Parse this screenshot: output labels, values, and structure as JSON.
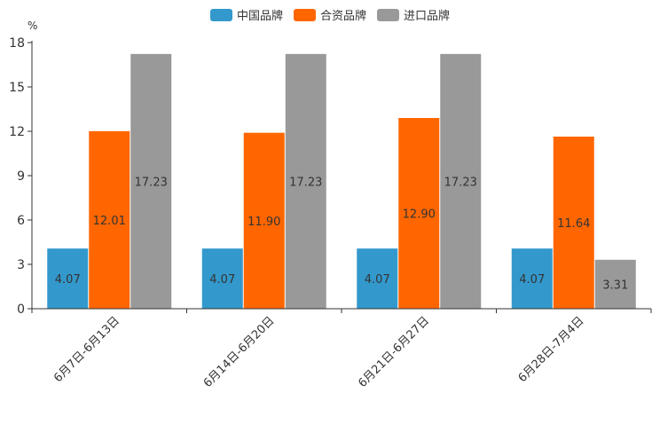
{
  "chart_data": {
    "type": "bar",
    "title": "",
    "unit_label": "%",
    "xlabel": "",
    "ylabel": "%",
    "ylim": [
      0,
      18
    ],
    "yticks": [
      0,
      3,
      6,
      9,
      12,
      15,
      18
    ],
    "categories": [
      "6月7日-6月13日",
      "6月14日-6月20日",
      "6月21日-6月27日",
      "6月28日-7月4日"
    ],
    "series": [
      {
        "name": "中国品牌",
        "color": "#3399cc",
        "values": [
          4.07,
          4.07,
          4.07,
          4.07
        ],
        "labels": [
          "4.07",
          "4.07",
          "4.07",
          "4.07"
        ]
      },
      {
        "name": "合资品牌",
        "color": "#ff6600",
        "values": [
          12.01,
          11.9,
          12.9,
          11.64
        ],
        "labels": [
          "12.01",
          "11.90",
          "12.90",
          "11.64"
        ]
      },
      {
        "name": "进口品牌",
        "color": "#999999",
        "values": [
          17.23,
          17.23,
          17.23,
          3.31
        ],
        "labels": [
          "17.23",
          "17.23",
          "17.23",
          "3.31"
        ]
      }
    ],
    "legend_position": "top-center",
    "grid": false
  }
}
